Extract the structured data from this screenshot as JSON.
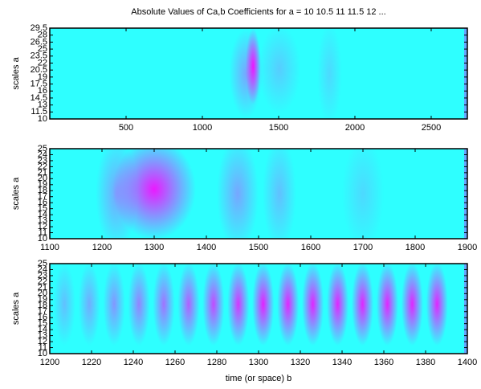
{
  "chart_data": [
    {
      "type": "heatmap",
      "title": "Absolute Values of Ca,b Coefficients for a =  10 10.5 11 11.5 12 ...",
      "ylabel": "scales a",
      "colormap": [
        "#00ffff",
        "#ff00ff"
      ],
      "xlim": [
        0,
        2737
      ],
      "xticks": [
        500,
        1000,
        1500,
        2000,
        2500
      ],
      "ylim": [
        10,
        29.5
      ],
      "yticks": [
        10,
        11.5,
        13,
        14.5,
        16,
        17.5,
        19,
        20.5,
        22,
        23.5,
        25,
        26.5,
        28,
        29.5
      ]
    },
    {
      "type": "heatmap",
      "ylabel": "scales a",
      "colormap": [
        "#00ffff",
        "#ff00ff"
      ],
      "xlim": [
        1100,
        1900
      ],
      "xticks": [
        1100,
        1200,
        1300,
        1400,
        1500,
        1600,
        1700,
        1800,
        1900
      ],
      "ylim": [
        10,
        25
      ],
      "yticks": [
        10,
        11,
        12,
        13,
        14,
        15,
        16,
        17,
        18,
        19,
        20,
        21,
        22,
        23,
        24,
        25
      ]
    },
    {
      "type": "heatmap",
      "ylabel": "scales a",
      "xlabel": "time (or space) b",
      "colormap": [
        "#00ffff",
        "#ff00ff"
      ],
      "xlim": [
        1200,
        1400
      ],
      "xticks": [
        1200,
        1220,
        1240,
        1260,
        1280,
        1300,
        1320,
        1340,
        1360,
        1380,
        1400
      ],
      "ylim": [
        10,
        25
      ],
      "yticks": [
        10,
        11,
        12,
        13,
        14,
        15,
        16,
        17,
        18,
        19,
        20,
        21,
        22,
        23,
        24,
        25
      ]
    }
  ]
}
